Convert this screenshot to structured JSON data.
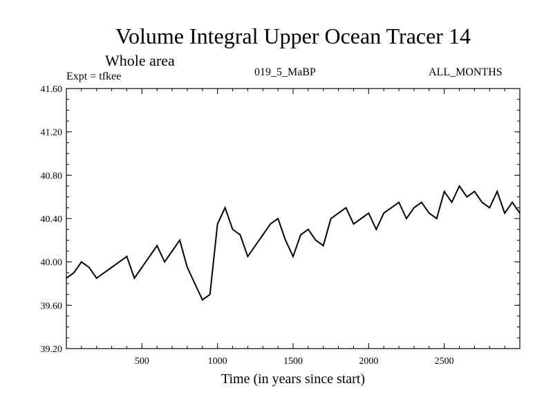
{
  "header": {
    "title": "Volume Integral Upper Ocean Tracer 14",
    "subtitle": "Whole area",
    "experiment": "Expt = tfkee",
    "run_label": "019_5_MaBP",
    "months_label": "ALL_MONTHS"
  },
  "chart_data": {
    "type": "line",
    "title": "Volume Integral Upper Ocean Tracer 14",
    "xlabel": "Time (in years since start)",
    "ylabel": "",
    "xlim": [
      0,
      3000
    ],
    "ylim": [
      39.2,
      41.6
    ],
    "x_ticks": [
      500,
      1000,
      1500,
      2000,
      2500
    ],
    "y_ticks": [
      "39.20",
      "39.60",
      "40.00",
      "40.40",
      "40.80",
      "41.20",
      "41.60"
    ],
    "grid": false,
    "line_color": "#000000",
    "series": [
      {
        "x": [
          0,
          50,
          100,
          150,
          200,
          250,
          300,
          350,
          400,
          450,
          500,
          550,
          600,
          650,
          700,
          750,
          800,
          850,
          900,
          950,
          1000,
          1050,
          1100,
          1150,
          1200,
          1250,
          1300,
          1350,
          1400,
          1450,
          1500,
          1550,
          1600,
          1650,
          1700,
          1750,
          1800,
          1850,
          1900,
          1950,
          2000,
          2050,
          2100,
          2150,
          2200,
          2250,
          2300,
          2350,
          2400,
          2450,
          2500,
          2550,
          2600,
          2650,
          2700,
          2750,
          2800,
          2850,
          2900,
          2950,
          3000
        ],
        "values": [
          39.85,
          39.9,
          40.0,
          39.95,
          39.85,
          39.9,
          39.95,
          40.0,
          40.05,
          39.85,
          39.95,
          40.05,
          40.15,
          40.0,
          40.1,
          40.2,
          39.95,
          39.8,
          39.65,
          39.7,
          40.35,
          40.5,
          40.3,
          40.25,
          40.05,
          40.15,
          40.25,
          40.35,
          40.4,
          40.2,
          40.05,
          40.25,
          40.3,
          40.2,
          40.15,
          40.4,
          40.45,
          40.5,
          40.35,
          40.4,
          40.45,
          40.3,
          40.45,
          40.5,
          40.55,
          40.4,
          40.5,
          40.55,
          40.45,
          40.4,
          40.65,
          40.55,
          40.7,
          40.6,
          40.65,
          40.55,
          40.5,
          40.65,
          40.45,
          40.55,
          40.45
        ]
      }
    ]
  }
}
